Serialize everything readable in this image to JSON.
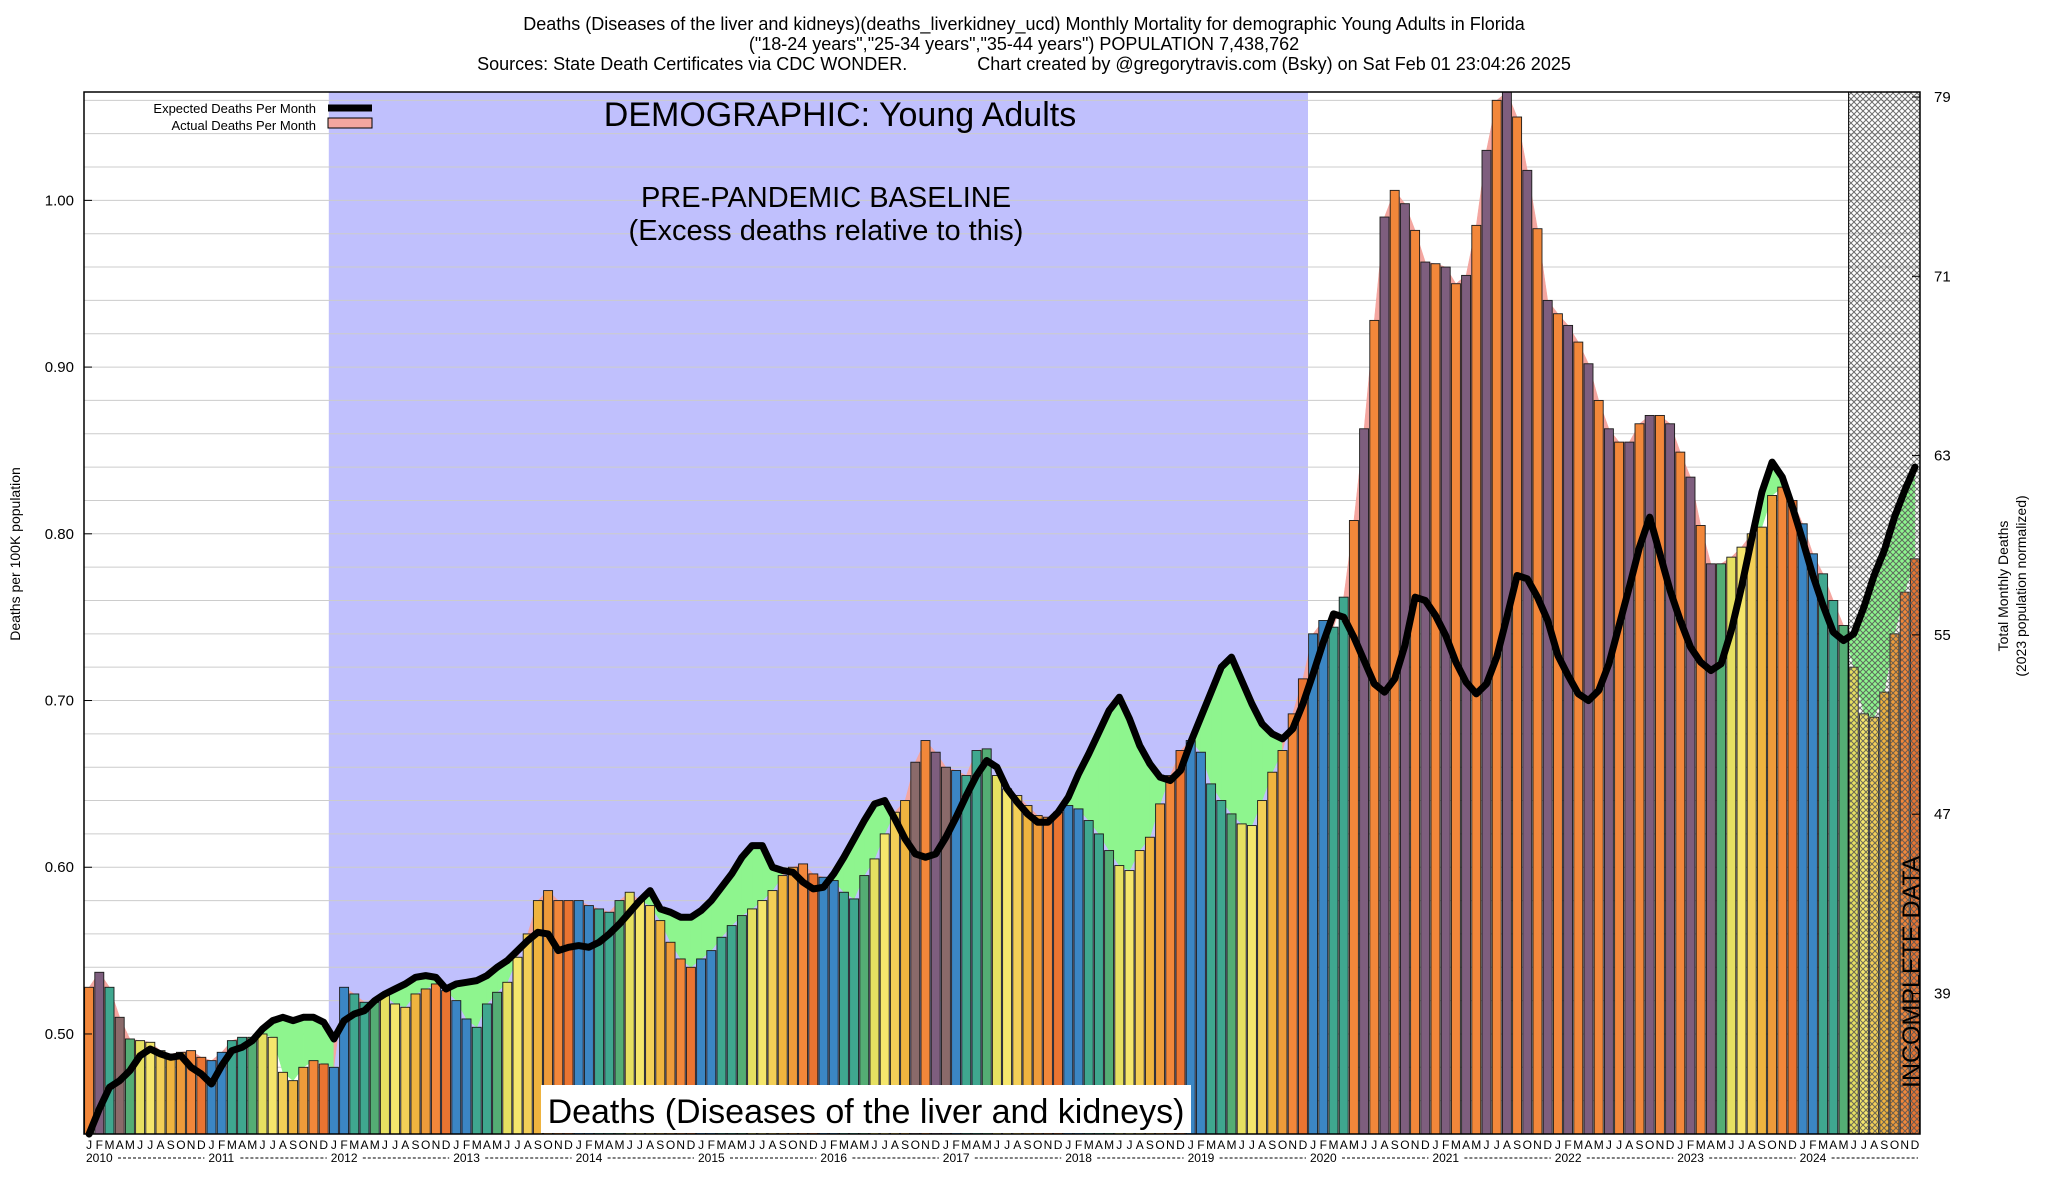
{
  "header": {
    "line1": "Deaths (Diseases of the liver and kidneys)(deaths_liverkidney_ucd) Monthly Mortality for demographic Young Adults in Florida",
    "line2": "(\"18-24 years\",\"25-34 years\",\"35-44 years\") POPULATION 7,438,762",
    "line3": "Sources: State Death Certificates via CDC WONDER.              Chart created by @gregorytravis.com (Bsky) on Sat Feb 01 23:04:26 2025"
  },
  "chart_data": {
    "type": "bar",
    "title": "DEMOGRAPHIC: Young Adults",
    "baseline_label_1": "PRE-PANDEMIC BASELINE",
    "baseline_label_2": "(Excess deaths relative to this)",
    "bottom_label": "Deaths (Diseases of the liver and kidneys)",
    "incomplete_label": "INCOMPLETE DATA",
    "ylabel_left": "Deaths per 100K population",
    "ylabel_right_1": "Total Monthly Deaths",
    "ylabel_right_2": "(2023 population normalized)",
    "ylim": [
      0.44,
      1.065
    ],
    "yticks": [
      "0.50",
      "0.60",
      "0.70",
      "0.80",
      "0.90",
      "1.00"
    ],
    "right_ticks": [
      "39",
      "47",
      "55",
      "63",
      "71",
      "79"
    ],
    "right_tick_values": [
      39,
      47,
      55,
      63,
      71,
      79
    ],
    "legend": {
      "expected": "Expected Deaths Per Month",
      "actual": "Actual Deaths Per Month",
      "placement": "top-left"
    },
    "years": [
      "2010",
      "2011",
      "2012",
      "2013",
      "2014",
      "2015",
      "2016",
      "2017",
      "2018",
      "2019",
      "2020",
      "2021",
      "2022",
      "2023",
      "2024"
    ],
    "month_letters": [
      "J",
      "F",
      "M",
      "A",
      "M",
      "J",
      "J",
      "A",
      "S",
      "O",
      "N",
      "D"
    ],
    "baseline_years": [
      "2012",
      "2019"
    ],
    "incomplete_from": "2024-06",
    "actual": [
      0.528,
      0.537,
      0.528,
      0.51,
      0.497,
      0.496,
      0.495,
      0.49,
      0.488,
      0.489,
      0.49,
      0.486,
      0.484,
      0.489,
      0.496,
      0.498,
      0.498,
      0.5,
      0.498,
      0.477,
      0.472,
      0.48,
      0.484,
      0.482,
      0.48,
      0.528,
      0.524,
      0.519,
      0.519,
      0.523,
      0.518,
      0.516,
      0.524,
      0.527,
      0.53,
      0.526,
      0.52,
      0.509,
      0.504,
      0.518,
      0.525,
      0.531,
      0.546,
      0.56,
      0.58,
      0.586,
      0.58,
      0.58,
      0.58,
      0.577,
      0.575,
      0.573,
      0.58,
      0.585,
      0.58,
      0.577,
      0.568,
      0.555,
      0.545,
      0.54,
      0.545,
      0.55,
      0.558,
      0.565,
      0.571,
      0.575,
      0.58,
      0.586,
      0.595,
      0.6,
      0.602,
      0.596,
      0.594,
      0.592,
      0.585,
      0.581,
      0.595,
      0.605,
      0.62,
      0.633,
      0.64,
      0.663,
      0.676,
      0.669,
      0.66,
      0.658,
      0.655,
      0.67,
      0.671,
      0.655,
      0.647,
      0.643,
      0.637,
      0.631,
      0.63,
      0.633,
      0.637,
      0.635,
      0.628,
      0.62,
      0.61,
      0.601,
      0.598,
      0.61,
      0.618,
      0.638,
      0.655,
      0.67,
      0.676,
      0.669,
      0.65,
      0.64,
      0.632,
      0.626,
      0.625,
      0.64,
      0.657,
      0.67,
      0.692,
      0.713,
      0.74,
      0.748,
      0.744,
      0.762,
      0.808,
      0.863,
      0.928,
      0.99,
      1.006,
      0.998,
      0.982,
      0.963,
      0.962,
      0.96,
      0.95,
      0.955,
      0.985,
      1.03,
      1.06,
      1.065,
      1.05,
      1.018,
      0.983,
      0.94,
      0.932,
      0.925,
      0.915,
      0.902,
      0.88,
      0.863,
      0.855,
      0.855,
      0.866,
      0.871,
      0.871,
      0.866,
      0.849,
      0.834,
      0.805,
      0.782,
      0.782,
      0.786,
      0.792,
      0.8,
      0.804,
      0.823,
      0.828,
      0.82,
      0.806,
      0.788,
      0.776,
      0.76,
      0.745,
      0.72,
      0.692,
      0.69,
      0.705,
      0.74,
      0.765,
      0.785
    ],
    "expected": [
      0.44,
      0.455,
      0.468,
      0.472,
      0.478,
      0.487,
      0.491,
      0.488,
      0.486,
      0.487,
      0.48,
      0.476,
      0.47,
      0.481,
      0.49,
      0.492,
      0.496,
      0.503,
      0.508,
      0.51,
      0.508,
      0.51,
      0.51,
      0.507,
      0.497,
      0.508,
      0.512,
      0.514,
      0.52,
      0.524,
      0.527,
      0.53,
      0.534,
      0.535,
      0.534,
      0.527,
      0.53,
      0.531,
      0.532,
      0.535,
      0.54,
      0.544,
      0.55,
      0.556,
      0.561,
      0.56,
      0.55,
      0.552,
      0.553,
      0.552,
      0.555,
      0.56,
      0.566,
      0.573,
      0.58,
      0.586,
      0.575,
      0.573,
      0.57,
      0.57,
      0.574,
      0.58,
      0.588,
      0.596,
      0.606,
      0.613,
      0.613,
      0.6,
      0.598,
      0.597,
      0.591,
      0.587,
      0.588,
      0.596,
      0.606,
      0.617,
      0.628,
      0.638,
      0.64,
      0.629,
      0.617,
      0.608,
      0.606,
      0.608,
      0.618,
      0.63,
      0.643,
      0.655,
      0.664,
      0.66,
      0.647,
      0.639,
      0.632,
      0.627,
      0.627,
      0.633,
      0.642,
      0.656,
      0.668,
      0.681,
      0.694,
      0.702,
      0.689,
      0.673,
      0.662,
      0.654,
      0.652,
      0.658,
      0.675,
      0.69,
      0.705,
      0.72,
      0.726,
      0.712,
      0.698,
      0.686,
      0.68,
      0.677,
      0.683,
      0.698,
      0.716,
      0.735,
      0.752,
      0.75,
      0.738,
      0.724,
      0.71,
      0.705,
      0.713,
      0.733,
      0.762,
      0.76,
      0.751,
      0.739,
      0.723,
      0.711,
      0.704,
      0.71,
      0.726,
      0.75,
      0.775,
      0.773,
      0.762,
      0.748,
      0.727,
      0.715,
      0.704,
      0.7,
      0.706,
      0.722,
      0.745,
      0.768,
      0.792,
      0.81,
      0.788,
      0.766,
      0.748,
      0.732,
      0.723,
      0.718,
      0.722,
      0.742,
      0.768,
      0.797,
      0.825,
      0.843,
      0.834,
      0.816,
      0.796,
      0.775,
      0.757,
      0.741,
      0.736,
      0.74,
      0.756,
      0.775,
      0.79,
      0.81,
      0.826,
      0.84
    ]
  }
}
